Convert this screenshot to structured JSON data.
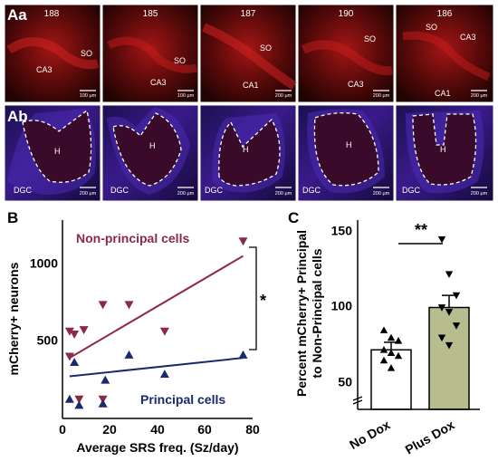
{
  "panel_labels": {
    "aa": "Aa",
    "ab": "Ab",
    "b": "B",
    "c": "C"
  },
  "colors": {
    "nonprincipal": "#8b2a45",
    "principal": "#1a2a6c",
    "nodox_bar": "#ffffff",
    "plusdox_bar": "#b7bd8f"
  },
  "row_aa": [
    {
      "id": "188",
      "labels": [
        "SO",
        "CA3"
      ],
      "scale": "100 μm"
    },
    {
      "id": "185",
      "labels": [
        "SO",
        "CA3"
      ],
      "scale": "100 μm"
    },
    {
      "id": "187",
      "labels": [
        "SO",
        "CA1"
      ],
      "scale": "200 μm"
    },
    {
      "id": "190",
      "labels": [
        "SO",
        "CA3"
      ],
      "scale": "200 μm"
    },
    {
      "id": "186",
      "labels": [
        "SO",
        "CA3",
        "CA1"
      ],
      "scale": "200 μm"
    }
  ],
  "row_ab": [
    {
      "labels": [
        "H",
        "DGC"
      ],
      "scale": "200 μm"
    },
    {
      "labels": [
        "H",
        "DGC"
      ],
      "scale": "200 μm"
    },
    {
      "labels": [
        "H",
        "DGC"
      ],
      "scale": "200 μm"
    },
    {
      "labels": [
        "H",
        "DGC"
      ],
      "scale": "200 μm"
    },
    {
      "labels": [
        "H",
        "DGC"
      ],
      "scale": "200 μm"
    }
  ],
  "chart_data": [
    {
      "type": "scatter",
      "xlabel": "Average SRS freq. (Sz/day)",
      "ylabel": "mCherry+ neurons",
      "xlim": [
        0,
        80
      ],
      "ylim": [
        0,
        1300
      ],
      "xticks": [
        "0",
        "20",
        "40",
        "60",
        "80"
      ],
      "yticks": [
        "500",
        "1000"
      ],
      "significance": "*",
      "series": [
        {
          "name": "Non-principal cells",
          "points": [
            [
              3,
              590
            ],
            [
              3,
              420
            ],
            [
              5,
              570
            ],
            [
              9,
              600
            ],
            [
              7,
              130
            ],
            [
              17,
              130
            ],
            [
              17,
              770
            ],
            [
              28,
              770
            ],
            [
              43,
              590
            ],
            [
              76,
              1200
            ]
          ],
          "fit": [
            [
              3,
              410
            ],
            [
              76,
              1100
            ]
          ]
        },
        {
          "name": "Principal cells",
          "points": [
            [
              3,
              130
            ],
            [
              5,
              380
            ],
            [
              7,
              90
            ],
            [
              17,
              100
            ],
            [
              18,
              260
            ],
            [
              28,
              430
            ],
            [
              43,
              300
            ],
            [
              76,
              430
            ]
          ],
          "fit": [
            [
              3,
              285
            ],
            [
              76,
              410
            ]
          ]
        }
      ]
    },
    {
      "type": "bar",
      "ylabel": "Percent mCherry+ Principal to Non-Principal cells",
      "yticks": [
        "50",
        "100",
        "150"
      ],
      "ylim": [
        40,
        160
      ],
      "categories": [
        "No Dox",
        "Plus Dox"
      ],
      "values": [
        72,
        100
      ],
      "errors": [
        5,
        8
      ],
      "significance": "**",
      "points": [
        [
          85,
          80,
          78,
          72,
          70,
          68,
          65,
          60
        ],
        [
          145,
          122,
          108,
          100,
          97,
          88,
          80,
          75
        ]
      ]
    }
  ]
}
